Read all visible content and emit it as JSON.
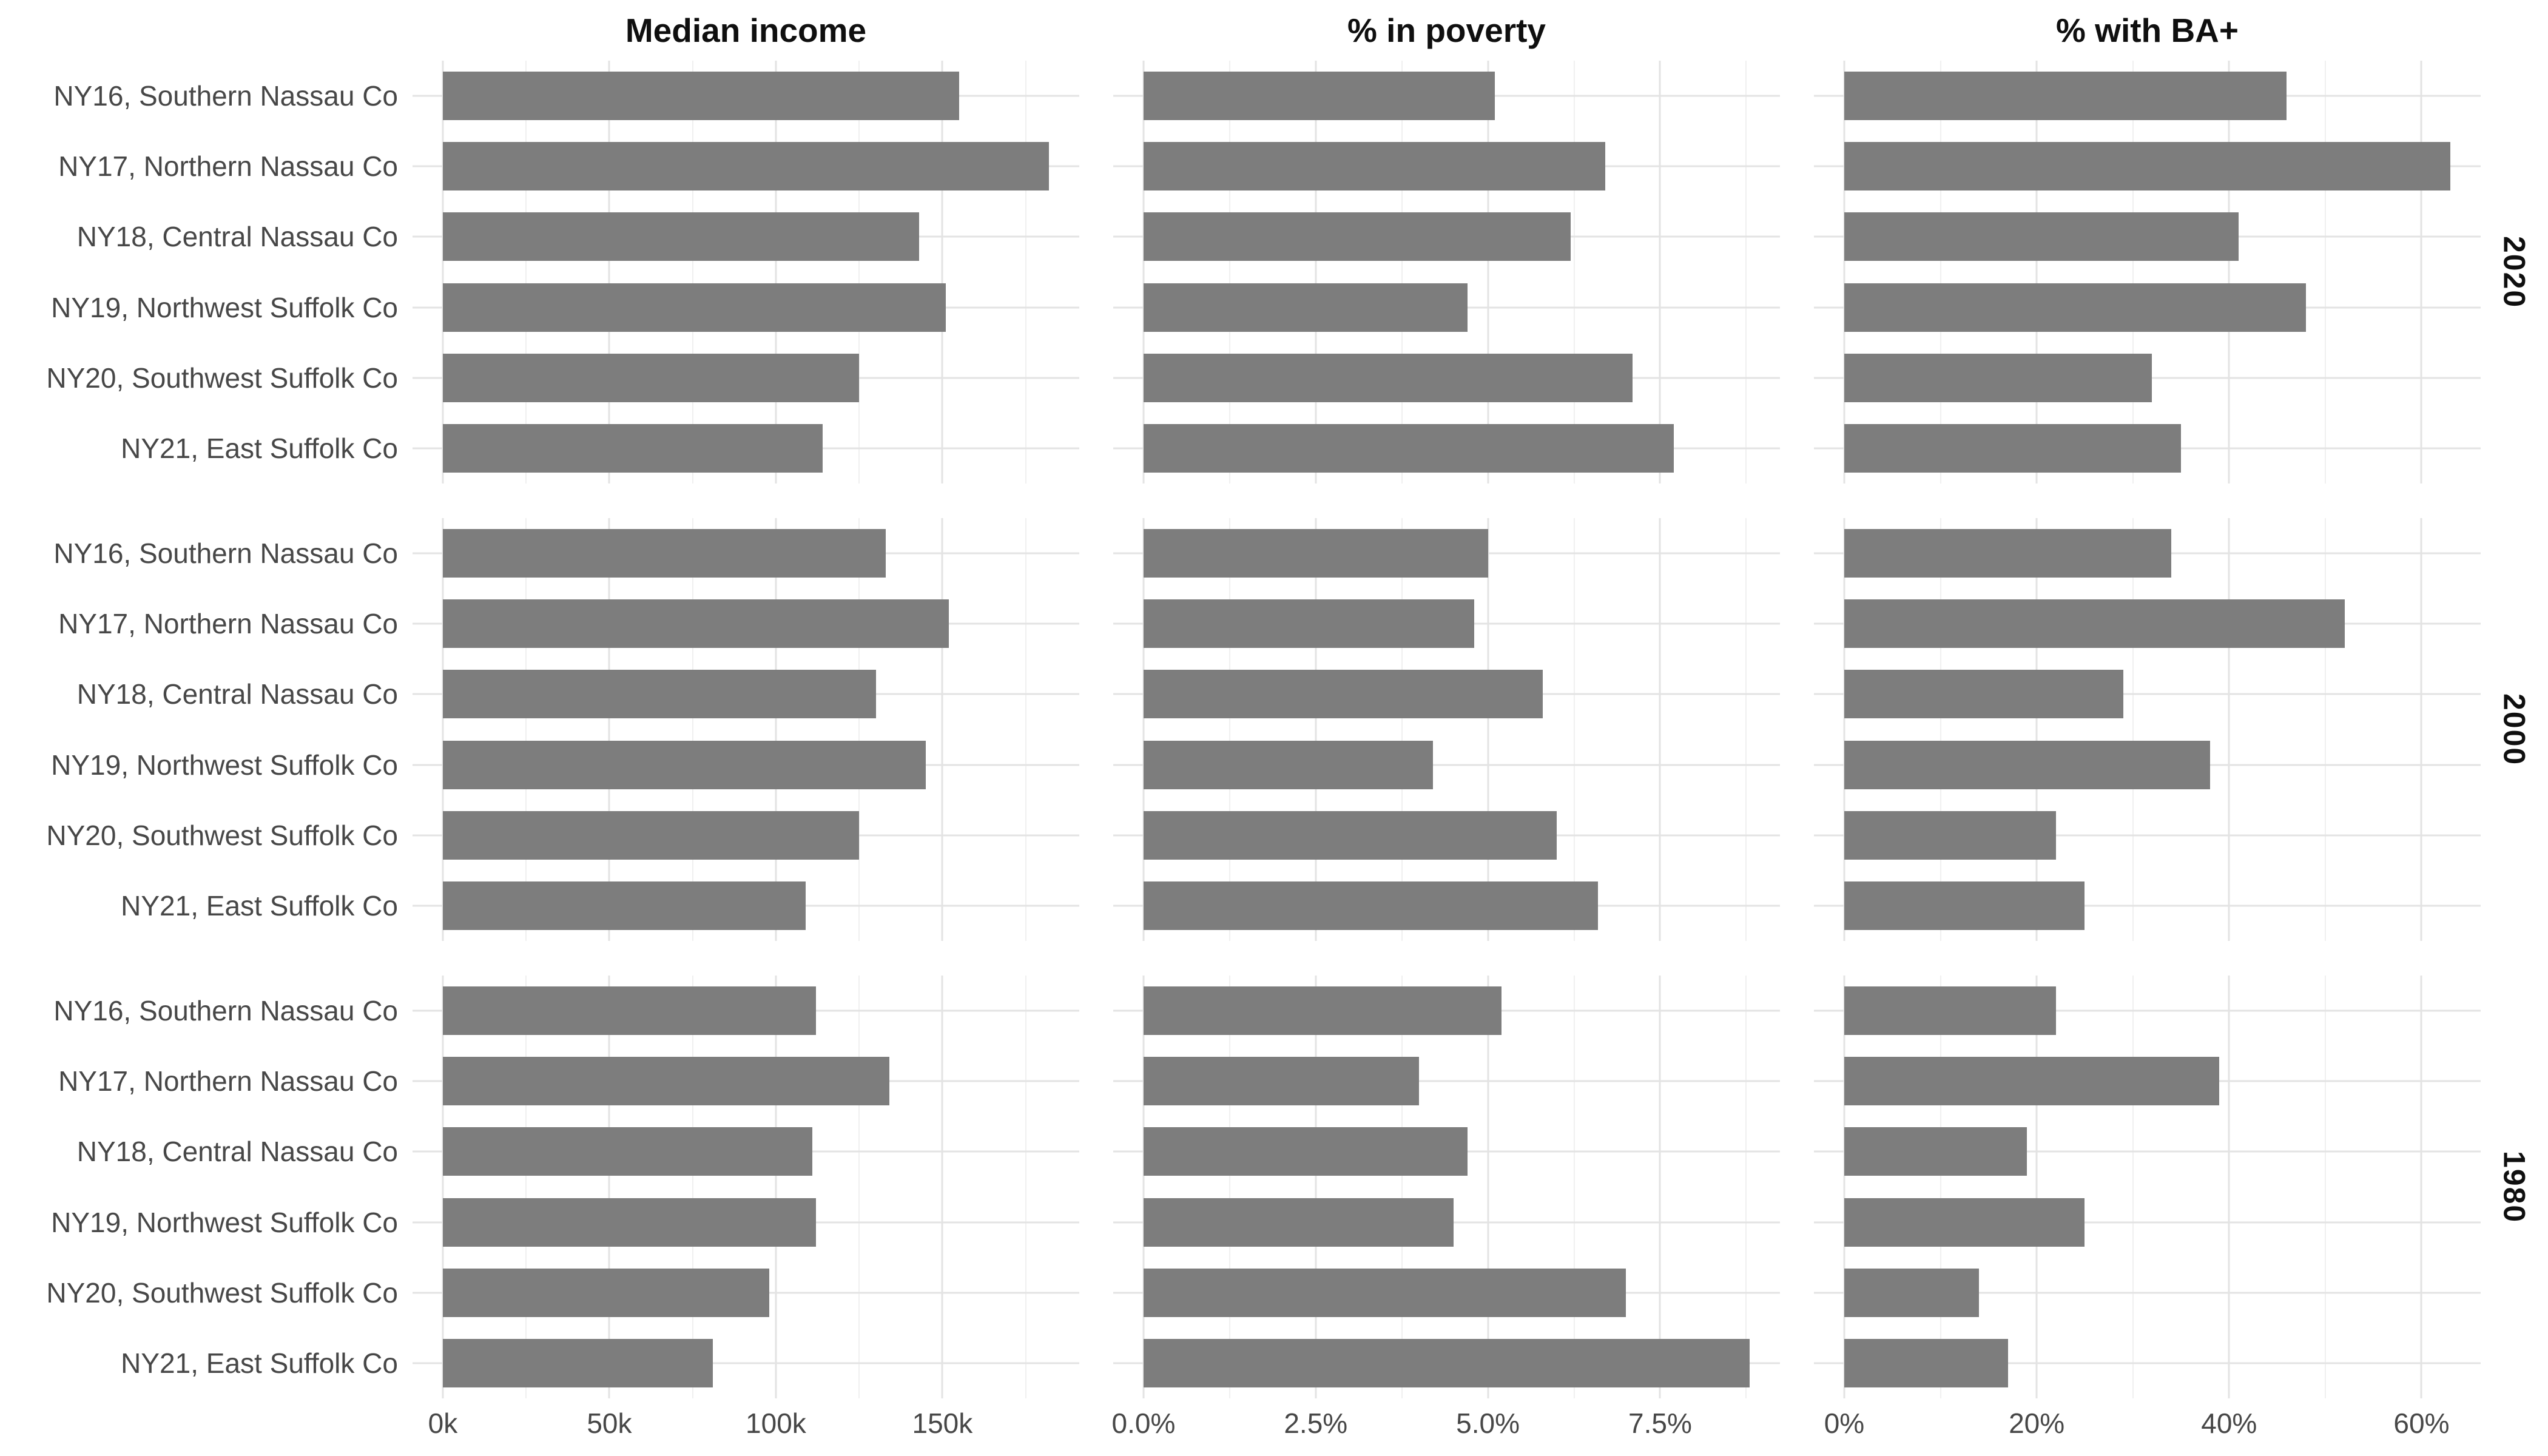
{
  "figure_style": {
    "background": "#ffffff",
    "bar_color": "#7d7d7d",
    "grid_major_color": "#e3e3e3",
    "grid_minor_color": "#f0f0f0",
    "axis_text_color": "#474747",
    "strip_text_color": "#0f0f0f"
  },
  "col_titles": [
    "Median income",
    "% in poverty",
    "% with BA+"
  ],
  "row_titles": [
    "2020",
    "2000",
    "1980"
  ],
  "categories": [
    "NY16, Southern Nassau Co",
    "NY17, Northern Nassau Co",
    "NY18, Central Nassau Co",
    "NY19, Northwest Suffolk Co",
    "NY20, Southwest Suffolk Co",
    "NY21, East Suffolk Co"
  ],
  "x_axes": [
    {
      "tick_labels": [
        "0k",
        "50k",
        "100k",
        "150k"
      ],
      "tick_values": [
        0,
        50,
        100,
        150
      ],
      "majors": [
        0,
        50,
        100,
        150,
        200
      ],
      "minors": [
        25,
        75,
        125,
        175
      ],
      "data_max": 182,
      "unit": "USD thousands"
    },
    {
      "tick_labels": [
        "0.0%",
        "2.5%",
        "5.0%",
        "7.5%"
      ],
      "tick_values": [
        0,
        2.5,
        5,
        7.5
      ],
      "majors": [
        0,
        2.5,
        5,
        7.5
      ],
      "minors": [
        1.25,
        3.75,
        6.25,
        8.75
      ],
      "data_max": 8.8,
      "unit": "percent"
    },
    {
      "tick_labels": [
        "0%",
        "20%",
        "40%",
        "60%"
      ],
      "tick_values": [
        0,
        20,
        40,
        60
      ],
      "majors": [
        0,
        20,
        40,
        60
      ],
      "minors": [
        10,
        30,
        50
      ],
      "data_max": 63,
      "unit": "percent"
    }
  ],
  "chart_data": {
    "type": "bar",
    "orientation": "horizontal",
    "grid": "on",
    "legend": "none",
    "facet_cols": [
      "Median income",
      "% in poverty",
      "% with BA+"
    ],
    "facet_rows": [
      "2020",
      "2000",
      "1980"
    ],
    "categories": [
      "NY16, Southern Nassau Co",
      "NY17, Northern Nassau Co",
      "NY18, Central Nassau Co",
      "NY19, Northwest Suffolk Co",
      "NY20, Southwest Suffolk Co",
      "NY21, East Suffolk Co"
    ],
    "value_units": [
      "USD thousands",
      "percent",
      "percent"
    ],
    "axis_ranges": [
      {
        "xlim": [
          0,
          191
        ],
        "ticks": [
          0,
          50,
          100,
          150
        ]
      },
      {
        "xlim": [
          0,
          9.25
        ],
        "ticks": [
          0,
          2.5,
          5.0,
          7.5
        ]
      },
      {
        "xlim": [
          0,
          66
        ],
        "ticks": [
          0,
          20,
          40,
          60
        ]
      }
    ],
    "panels": [
      {
        "row": "2020",
        "col": "Median income",
        "values": [
          155,
          182,
          143,
          151,
          125,
          114
        ]
      },
      {
        "row": "2020",
        "col": "% in poverty",
        "values": [
          5.1,
          6.7,
          6.2,
          4.7,
          7.1,
          7.7
        ]
      },
      {
        "row": "2020",
        "col": "% with BA+",
        "values": [
          46,
          63,
          41,
          48,
          32,
          35
        ]
      },
      {
        "row": "2000",
        "col": "Median income",
        "values": [
          133,
          152,
          130,
          145,
          125,
          109
        ]
      },
      {
        "row": "2000",
        "col": "% in poverty",
        "values": [
          5.0,
          4.8,
          5.8,
          4.2,
          6.0,
          6.6
        ]
      },
      {
        "row": "2000",
        "col": "% with BA+",
        "values": [
          34,
          52,
          29,
          38,
          22,
          25
        ]
      },
      {
        "row": "1980",
        "col": "Median income",
        "values": [
          112,
          134,
          111,
          112,
          98,
          81
        ]
      },
      {
        "row": "1980",
        "col": "% in poverty",
        "values": [
          5.2,
          4.0,
          4.7,
          4.5,
          7.0,
          8.8
        ]
      },
      {
        "row": "1980",
        "col": "% with BA+",
        "values": [
          22,
          39,
          19,
          25,
          14,
          17
        ]
      }
    ]
  }
}
